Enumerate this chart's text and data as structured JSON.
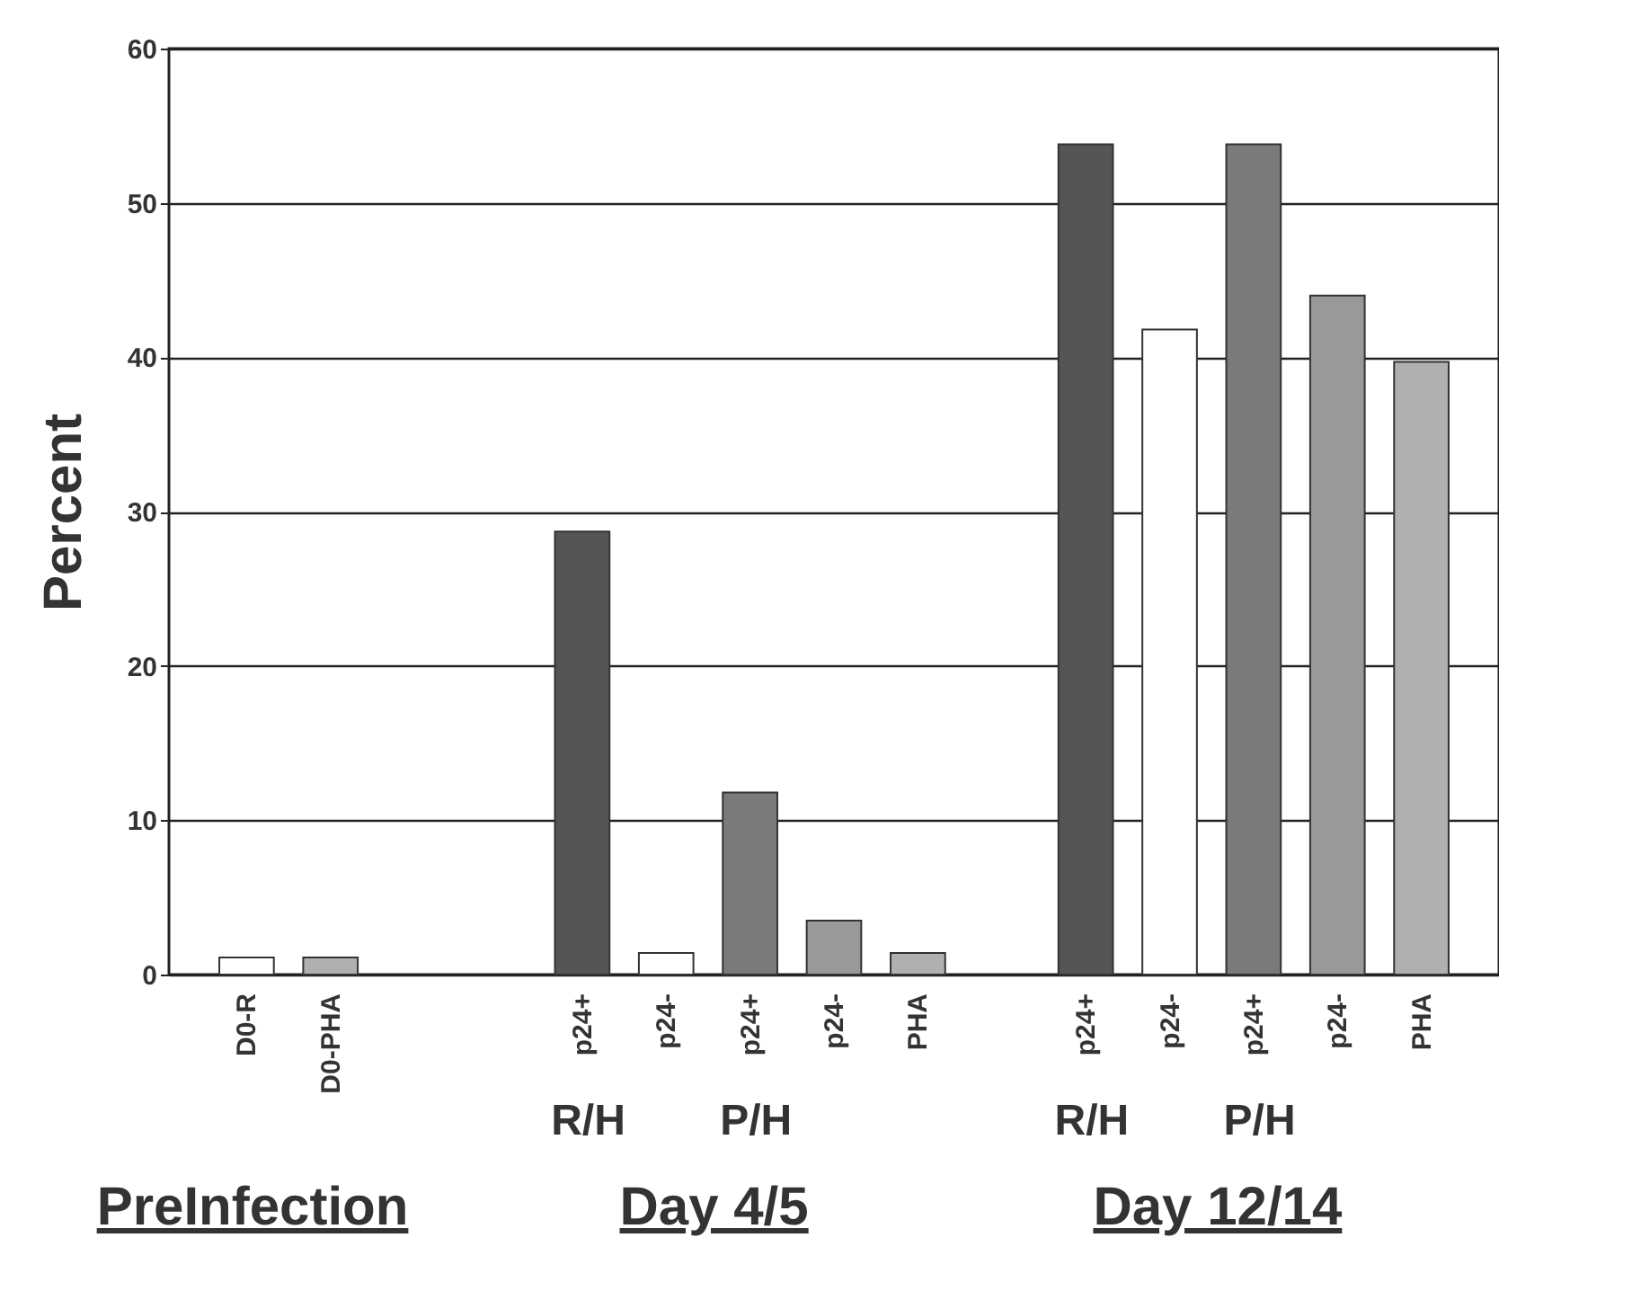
{
  "chart_data": {
    "type": "bar",
    "ylabel": "Percent",
    "categories": [
      "D0-R",
      "D0-PHA",
      null,
      null,
      "p24+",
      "p24-",
      "p24+",
      "p24-",
      "PHA",
      null,
      "p24+",
      "p24-",
      "p24+",
      "p24-",
      "PHA"
    ],
    "values": [
      1.1,
      1.1,
      null,
      null,
      28.7,
      1.4,
      11.8,
      3.5,
      1.4,
      null,
      53.8,
      41.8,
      53.8,
      44,
      39.7
    ],
    "colors": [
      "#ffffff",
      "#b0b0b0",
      null,
      null,
      "#555555",
      "#ffffff",
      "#7a7a7a",
      "#999999",
      "#b0b0b0",
      null,
      "#555555",
      "#ffffff",
      "#7a7a7a",
      "#999999",
      "#b0b0b0"
    ],
    "ylim": [
      0,
      60
    ],
    "yticks": [
      0,
      10,
      20,
      30,
      40,
      50,
      60
    ],
    "grid": "y",
    "annotations": [
      "R/H",
      "P/H",
      "R/H",
      "P/H",
      "PreInfection",
      "Day 4/5",
      "Day 12/14"
    ]
  }
}
